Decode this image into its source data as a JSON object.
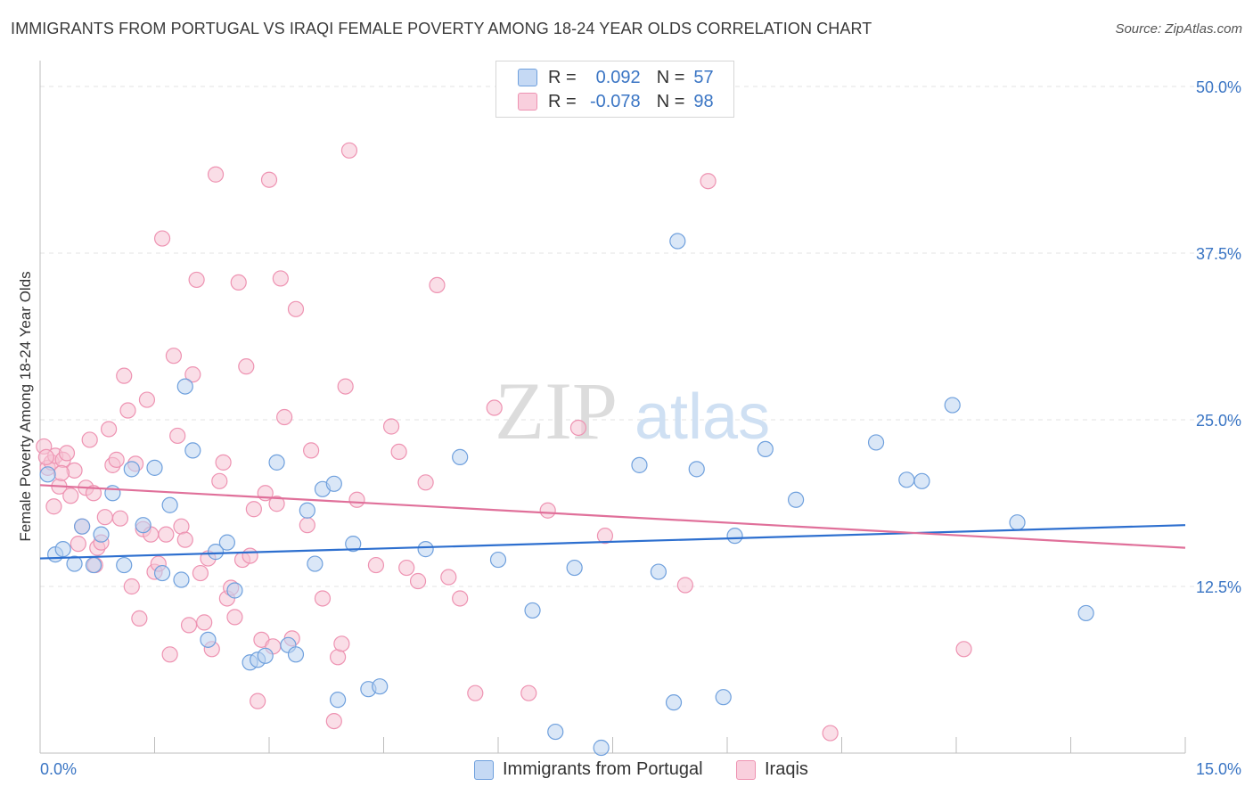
{
  "title": "IMMIGRANTS FROM PORTUGAL VS IRAQI FEMALE POVERTY AMONG 18-24 YEAR OLDS CORRELATION CHART",
  "source": "Source: ZipAtlas.com",
  "watermark": {
    "zip": "ZIP",
    "atlas": "atlas"
  },
  "legend": {
    "rows": [
      {
        "r_label": "R =",
        "r_value": "0.092",
        "n_label": "N =",
        "n_value": "57"
      },
      {
        "r_label": "R =",
        "r_value": "-0.078",
        "n_label": "N =",
        "n_value": "98"
      }
    ]
  },
  "chart_data": {
    "type": "scatter",
    "title": "IMMIGRANTS FROM PORTUGAL VS IRAQI FEMALE POVERTY AMONG 18-24 YEAR OLDS CORRELATION CHART",
    "xlabel": "",
    "ylabel": "Female Poverty Among 18-24 Year Olds",
    "xlim": [
      0,
      15
    ],
    "ylim": [
      0,
      50
    ],
    "x_tick_labels": [
      "0.0%",
      "15.0%"
    ],
    "y_tick_labels": [
      "12.5%",
      "25.0%",
      "37.5%",
      "50.0%"
    ],
    "y_ticks": [
      12.5,
      25,
      37.5,
      50
    ],
    "grid": true,
    "legend_position": "top-center and bottom",
    "colors": {
      "portugal": "#6fa0dd",
      "iraqi": "#ee93b2",
      "portugal_line": "#2d6fcf",
      "iraqi_line": "#e0709a",
      "tick_label": "#3a75c4"
    },
    "series": [
      {
        "name": "Immigrants from Portugal",
        "R": 0.092,
        "N": 57,
        "trend": [
          [
            0,
            14.6
          ],
          [
            15,
            17.1
          ]
        ],
        "points": [
          [
            0.1,
            20.9
          ],
          [
            0.2,
            14.9
          ],
          [
            0.3,
            15.3
          ],
          [
            0.45,
            14.2
          ],
          [
            0.55,
            17.0
          ],
          [
            0.7,
            14.1
          ],
          [
            0.8,
            16.4
          ],
          [
            0.95,
            19.5
          ],
          [
            1.1,
            14.1
          ],
          [
            1.2,
            21.3
          ],
          [
            1.35,
            17.1
          ],
          [
            1.5,
            21.4
          ],
          [
            1.6,
            13.5
          ],
          [
            1.7,
            18.6
          ],
          [
            1.85,
            13.0
          ],
          [
            1.9,
            27.5
          ],
          [
            2.0,
            22.7
          ],
          [
            2.2,
            8.5
          ],
          [
            2.3,
            15.1
          ],
          [
            2.45,
            15.8
          ],
          [
            2.55,
            12.2
          ],
          [
            2.75,
            6.8
          ],
          [
            2.85,
            7.0
          ],
          [
            2.95,
            7.3
          ],
          [
            3.1,
            21.8
          ],
          [
            3.25,
            8.1
          ],
          [
            3.35,
            7.4
          ],
          [
            3.5,
            18.2
          ],
          [
            3.6,
            14.2
          ],
          [
            3.7,
            19.8
          ],
          [
            3.85,
            20.2
          ],
          [
            3.9,
            4.0
          ],
          [
            4.1,
            15.7
          ],
          [
            4.3,
            4.8
          ],
          [
            4.45,
            5.0
          ],
          [
            5.05,
            15.3
          ],
          [
            5.5,
            22.2
          ],
          [
            6.0,
            14.5
          ],
          [
            6.45,
            10.7
          ],
          [
            6.75,
            1.6
          ],
          [
            7.0,
            13.9
          ],
          [
            7.35,
            0.4
          ],
          [
            7.85,
            21.6
          ],
          [
            8.1,
            13.6
          ],
          [
            8.3,
            3.8
          ],
          [
            8.35,
            38.4
          ],
          [
            8.6,
            21.3
          ],
          [
            8.95,
            4.2
          ],
          [
            9.1,
            16.3
          ],
          [
            9.5,
            22.8
          ],
          [
            9.9,
            19.0
          ],
          [
            10.95,
            23.3
          ],
          [
            11.35,
            20.5
          ],
          [
            11.55,
            20.4
          ],
          [
            11.95,
            26.1
          ],
          [
            12.8,
            17.3
          ],
          [
            13.7,
            10.5
          ]
        ]
      },
      {
        "name": "Iraqis",
        "R": -0.078,
        "N": 98,
        "trend": [
          [
            0,
            20.1
          ],
          [
            15,
            15.4
          ]
        ],
        "points": [
          [
            0.05,
            23.0
          ],
          [
            0.1,
            21.4
          ],
          [
            0.15,
            21.8
          ],
          [
            0.2,
            22.3
          ],
          [
            0.25,
            20.0
          ],
          [
            0.3,
            22.0
          ],
          [
            0.35,
            22.5
          ],
          [
            0.4,
            19.3
          ],
          [
            0.45,
            21.2
          ],
          [
            0.5,
            15.7
          ],
          [
            0.55,
            17.0
          ],
          [
            0.6,
            19.9
          ],
          [
            0.65,
            23.5
          ],
          [
            0.7,
            19.5
          ],
          [
            0.72,
            14.1
          ],
          [
            0.75,
            15.4
          ],
          [
            0.8,
            15.8
          ],
          [
            0.85,
            17.7
          ],
          [
            0.9,
            24.3
          ],
          [
            0.95,
            21.6
          ],
          [
            1.0,
            22.0
          ],
          [
            1.05,
            17.6
          ],
          [
            1.1,
            28.3
          ],
          [
            1.15,
            25.7
          ],
          [
            1.2,
            12.5
          ],
          [
            1.25,
            21.7
          ],
          [
            1.3,
            10.1
          ],
          [
            1.35,
            16.8
          ],
          [
            1.4,
            26.5
          ],
          [
            1.45,
            16.4
          ],
          [
            1.5,
            13.6
          ],
          [
            1.55,
            14.2
          ],
          [
            1.6,
            38.6
          ],
          [
            1.65,
            16.4
          ],
          [
            1.7,
            7.4
          ],
          [
            1.75,
            29.8
          ],
          [
            1.8,
            23.8
          ],
          [
            1.85,
            17.0
          ],
          [
            1.9,
            16.0
          ],
          [
            1.95,
            9.6
          ],
          [
            2.0,
            28.4
          ],
          [
            2.05,
            35.5
          ],
          [
            2.1,
            13.5
          ],
          [
            2.15,
            9.8
          ],
          [
            2.2,
            14.6
          ],
          [
            2.25,
            7.8
          ],
          [
            2.3,
            43.4
          ],
          [
            2.35,
            20.4
          ],
          [
            2.4,
            21.8
          ],
          [
            2.45,
            11.6
          ],
          [
            2.5,
            12.4
          ],
          [
            2.55,
            10.2
          ],
          [
            2.6,
            35.3
          ],
          [
            2.65,
            14.5
          ],
          [
            2.7,
            29.0
          ],
          [
            2.75,
            14.8
          ],
          [
            2.8,
            18.3
          ],
          [
            2.85,
            3.9
          ],
          [
            2.9,
            8.5
          ],
          [
            2.95,
            19.5
          ],
          [
            3.0,
            43.0
          ],
          [
            3.05,
            8.0
          ],
          [
            3.1,
            18.7
          ],
          [
            3.15,
            35.6
          ],
          [
            3.2,
            25.2
          ],
          [
            3.3,
            8.6
          ],
          [
            3.35,
            33.3
          ],
          [
            3.5,
            17.1
          ],
          [
            3.55,
            22.7
          ],
          [
            3.7,
            11.6
          ],
          [
            3.85,
            2.4
          ],
          [
            3.9,
            7.2
          ],
          [
            3.95,
            8.2
          ],
          [
            4.0,
            27.5
          ],
          [
            4.05,
            45.2
          ],
          [
            4.15,
            19.0
          ],
          [
            4.4,
            14.1
          ],
          [
            4.6,
            24.5
          ],
          [
            4.7,
            22.6
          ],
          [
            4.8,
            13.9
          ],
          [
            4.95,
            12.9
          ],
          [
            5.05,
            20.3
          ],
          [
            5.2,
            35.1
          ],
          [
            5.35,
            13.2
          ],
          [
            5.5,
            11.6
          ],
          [
            5.7,
            4.5
          ],
          [
            5.95,
            25.9
          ],
          [
            6.4,
            4.5
          ],
          [
            6.65,
            18.2
          ],
          [
            7.05,
            24.4
          ],
          [
            7.4,
            16.3
          ],
          [
            8.45,
            12.6
          ],
          [
            8.75,
            42.9
          ],
          [
            10.35,
            1.5
          ],
          [
            12.1,
            7.8
          ],
          [
            0.08,
            22.2
          ],
          [
            0.18,
            18.5
          ],
          [
            0.28,
            21.0
          ]
        ]
      }
    ]
  }
}
